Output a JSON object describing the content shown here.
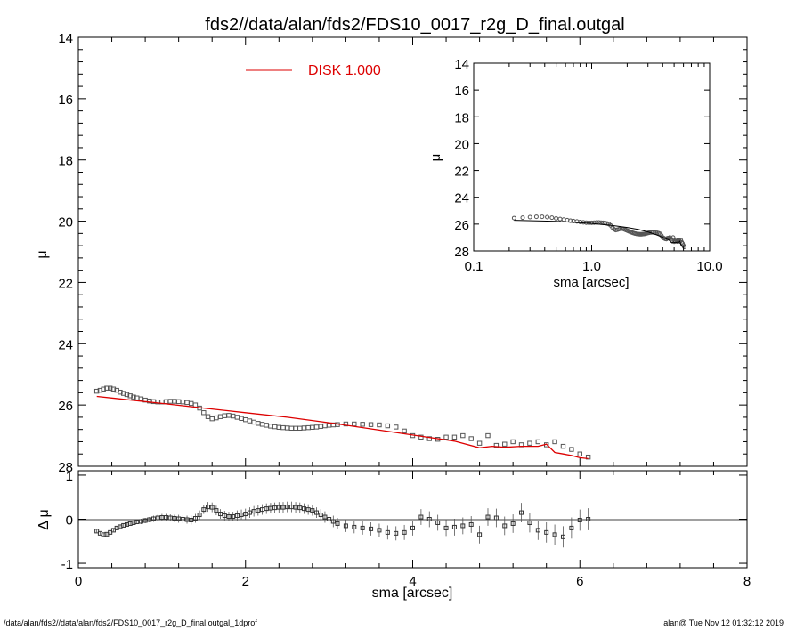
{
  "title": "fds2//data/alan/fds2/FDS10_0017_r2g_D_final.outgal",
  "footer": {
    "left": "/data/alan/fds2//data/alan/fds2/FDS10_0017_r2g_D_final.outgal_1dprof",
    "right": "alan@  Tue Nov 12 01:32:12 2019"
  },
  "colors": {
    "model": "#dd0000",
    "data": "#555555",
    "axes": "#000000"
  },
  "chart_data": [
    {
      "id": "main",
      "type": "scatter",
      "xlabel": "",
      "ylabel": "μ",
      "xlim": [
        0,
        8
      ],
      "ylim": [
        28,
        14
      ],
      "y_inverted": true,
      "yticks": [
        "14",
        "16",
        "18",
        "20",
        "22",
        "24",
        "26",
        "28"
      ],
      "legend": {
        "label": "DISK  1.000",
        "placement": "top-center"
      },
      "data_points": {
        "x": [
          0.22,
          0.26,
          0.3,
          0.34,
          0.38,
          0.42,
          0.46,
          0.5,
          0.54,
          0.58,
          0.62,
          0.66,
          0.7,
          0.75,
          0.8,
          0.85,
          0.9,
          0.95,
          1.0,
          1.05,
          1.1,
          1.15,
          1.2,
          1.25,
          1.3,
          1.35,
          1.4,
          1.45,
          1.5,
          1.55,
          1.6,
          1.65,
          1.7,
          1.75,
          1.8,
          1.85,
          1.9,
          1.95,
          2.0,
          2.05,
          2.1,
          2.15,
          2.2,
          2.25,
          2.3,
          2.35,
          2.4,
          2.45,
          2.5,
          2.55,
          2.6,
          2.65,
          2.7,
          2.75,
          2.8,
          2.85,
          2.9,
          2.95,
          3.0,
          3.05,
          3.1,
          3.2,
          3.3,
          3.4,
          3.5,
          3.6,
          3.7,
          3.8,
          3.9,
          4.0,
          4.1,
          4.2,
          4.3,
          4.4,
          4.5,
          4.6,
          4.7,
          4.8,
          4.9,
          5.0,
          5.1,
          5.2,
          5.3,
          5.4,
          5.5,
          5.6,
          5.7,
          5.8,
          5.9,
          6.0,
          6.1
        ],
        "y": [
          25.55,
          25.52,
          25.48,
          25.45,
          25.45,
          25.48,
          25.52,
          25.58,
          25.62,
          25.66,
          25.7,
          25.74,
          25.77,
          25.8,
          25.84,
          25.87,
          25.89,
          25.9,
          25.9,
          25.89,
          25.88,
          25.88,
          25.89,
          25.9,
          25.92,
          25.95,
          26.0,
          26.1,
          26.25,
          26.38,
          26.45,
          26.42,
          26.38,
          26.35,
          26.34,
          26.36,
          26.4,
          26.44,
          26.48,
          26.52,
          26.56,
          26.6,
          26.63,
          26.66,
          26.69,
          26.71,
          26.73,
          26.74,
          26.75,
          26.76,
          26.76,
          26.76,
          26.75,
          26.74,
          26.73,
          26.72,
          26.7,
          26.68,
          26.66,
          26.65,
          26.64,
          26.62,
          26.62,
          26.63,
          26.64,
          26.65,
          26.68,
          26.72,
          26.85,
          27.0,
          27.05,
          27.1,
          27.12,
          27.05,
          27.05,
          27.0,
          27.1,
          27.25,
          27.0,
          27.32,
          27.28,
          27.2,
          27.3,
          27.25,
          27.2,
          27.3,
          27.2,
          27.35,
          27.45,
          27.6,
          27.7
        ]
      },
      "model_line": {
        "name": "DISK  1.000",
        "x": [
          0.22,
          0.5,
          1.0,
          1.5,
          2.0,
          2.5,
          3.0,
          3.5,
          4.0,
          4.5,
          4.8,
          4.95,
          5.1,
          5.3,
          5.5,
          5.6,
          5.7,
          5.8,
          5.9,
          6.0,
          6.1
        ],
        "y": [
          25.72,
          25.8,
          25.95,
          26.1,
          26.25,
          26.4,
          26.58,
          26.78,
          26.98,
          27.18,
          27.4,
          27.35,
          27.38,
          27.35,
          27.35,
          27.28,
          27.55,
          27.6,
          27.65,
          27.72,
          27.75
        ]
      }
    },
    {
      "id": "residual",
      "type": "scatter",
      "xlabel": "sma [arcsec]",
      "ylabel": "Δ μ",
      "xlim": [
        0,
        8
      ],
      "ylim": [
        -1.1,
        1.1
      ],
      "xticks": [
        "0",
        "2",
        "4",
        "6",
        "8"
      ],
      "yticks": [
        "1",
        "0",
        "-1"
      ],
      "x": [
        0.22,
        0.26,
        0.3,
        0.34,
        0.38,
        0.42,
        0.46,
        0.5,
        0.54,
        0.58,
        0.62,
        0.66,
        0.7,
        0.75,
        0.8,
        0.85,
        0.9,
        0.95,
        1.0,
        1.05,
        1.1,
        1.15,
        1.2,
        1.25,
        1.3,
        1.35,
        1.4,
        1.45,
        1.5,
        1.55,
        1.6,
        1.65,
        1.7,
        1.75,
        1.8,
        1.85,
        1.9,
        1.95,
        2.0,
        2.05,
        2.1,
        2.15,
        2.2,
        2.25,
        2.3,
        2.35,
        2.4,
        2.45,
        2.5,
        2.55,
        2.6,
        2.65,
        2.7,
        2.75,
        2.8,
        2.85,
        2.9,
        2.95,
        3.0,
        3.05,
        3.1,
        3.2,
        3.3,
        3.4,
        3.5,
        3.6,
        3.7,
        3.8,
        3.9,
        4.0,
        4.1,
        4.2,
        4.3,
        4.4,
        4.5,
        4.6,
        4.7,
        4.8,
        4.9,
        5.0,
        5.1,
        5.2,
        5.3,
        5.4,
        5.5,
        5.6,
        5.7,
        5.8,
        5.9,
        6.0,
        6.1
      ],
      "y": [
        -0.27,
        -0.32,
        -0.35,
        -0.34,
        -0.3,
        -0.25,
        -0.2,
        -0.17,
        -0.14,
        -0.12,
        -0.1,
        -0.08,
        -0.06,
        -0.05,
        -0.03,
        -0.01,
        0.01,
        0.03,
        0.04,
        0.04,
        0.03,
        0.02,
        0.01,
        0.0,
        -0.01,
        -0.02,
        0.02,
        0.1,
        0.22,
        0.28,
        0.27,
        0.2,
        0.12,
        0.08,
        0.06,
        0.06,
        0.08,
        0.1,
        0.12,
        0.15,
        0.18,
        0.2,
        0.22,
        0.24,
        0.25,
        0.26,
        0.27,
        0.27,
        0.28,
        0.28,
        0.27,
        0.26,
        0.24,
        0.22,
        0.2,
        0.15,
        0.1,
        0.05,
        0.0,
        -0.05,
        -0.1,
        -0.15,
        -0.18,
        -0.2,
        -0.22,
        -0.25,
        -0.3,
        -0.32,
        -0.3,
        -0.2,
        0.05,
        0.0,
        -0.08,
        -0.2,
        -0.18,
        -0.15,
        -0.12,
        -0.35,
        0.05,
        0.03,
        -0.15,
        -0.1,
        0.15,
        -0.08,
        -0.25,
        -0.3,
        -0.35,
        -0.4,
        -0.2,
        -0.02,
        0.0
      ],
      "err": [
        0.03,
        0.03,
        0.03,
        0.03,
        0.03,
        0.03,
        0.04,
        0.04,
        0.04,
        0.04,
        0.05,
        0.05,
        0.05,
        0.06,
        0.06,
        0.06,
        0.07,
        0.07,
        0.08,
        0.08,
        0.08,
        0.08,
        0.09,
        0.09,
        0.09,
        0.1,
        0.1,
        0.1,
        0.1,
        0.11,
        0.11,
        0.11,
        0.11,
        0.11,
        0.11,
        0.11,
        0.12,
        0.12,
        0.12,
        0.12,
        0.12,
        0.12,
        0.12,
        0.12,
        0.12,
        0.12,
        0.12,
        0.12,
        0.12,
        0.12,
        0.12,
        0.12,
        0.12,
        0.12,
        0.12,
        0.12,
        0.13,
        0.13,
        0.13,
        0.13,
        0.13,
        0.14,
        0.14,
        0.15,
        0.15,
        0.15,
        0.16,
        0.16,
        0.17,
        0.17,
        0.18,
        0.18,
        0.18,
        0.18,
        0.19,
        0.19,
        0.19,
        0.2,
        0.2,
        0.21,
        0.21,
        0.21,
        0.22,
        0.22,
        0.22,
        0.23,
        0.23,
        0.24,
        0.24,
        0.24,
        0.25
      ]
    },
    {
      "id": "inset",
      "type": "scatter",
      "xlabel": "sma [arcsec]",
      "ylabel": "μ",
      "xscale": "log",
      "xlim": [
        0.1,
        10.0
      ],
      "ylim": [
        28,
        14
      ],
      "y_inverted": true,
      "xticks": [
        "0.1",
        "1.0",
        "10.0"
      ],
      "yticks": [
        "14",
        "16",
        "18",
        "20",
        "22",
        "24",
        "26",
        "28"
      ],
      "placement": "top-right"
    }
  ]
}
